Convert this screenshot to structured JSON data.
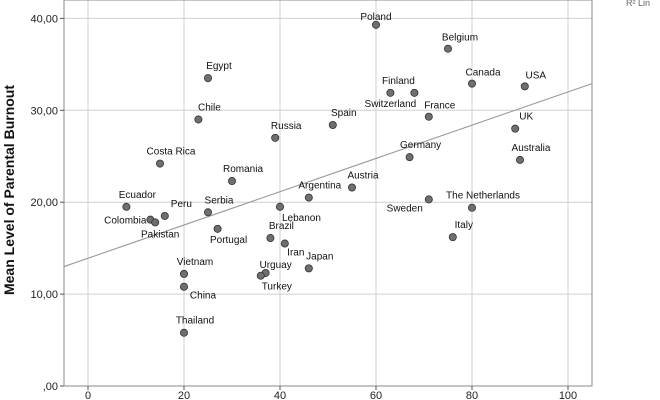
{
  "chart_data": {
    "type": "scatter",
    "xlim": [
      -5,
      105
    ],
    "ylim": [
      0,
      40
    ],
    "x_ticks": [
      0,
      20,
      40,
      60,
      80,
      100
    ],
    "x_tick_labels": [
      "0",
      "20",
      "40",
      "60",
      "80",
      "100"
    ],
    "y_ticks": [
      0,
      10,
      20,
      30,
      40
    ],
    "y_tick_labels": [
      ",00",
      "10,00",
      "20,00",
      "30,00",
      "40,00"
    ],
    "ylabel": "Mean Level of Parental Burnout",
    "xlabel": "",
    "grid": true,
    "corner_text": "R² Lin",
    "fit_line": {
      "intercept": 13.9,
      "slope": 0.181
    },
    "points": [
      {
        "label": "Poland",
        "x": 60,
        "y": 39.3
      },
      {
        "label": "Belgium",
        "x": 75,
        "y": 36.7
      },
      {
        "label": "Egypt",
        "x": 25,
        "y": 33.5
      },
      {
        "label": "USA",
        "x": 91,
        "y": 32.6
      },
      {
        "label": "Canada",
        "x": 80,
        "y": 32.9
      },
      {
        "label": "Finland",
        "x": 68,
        "y": 31.9
      },
      {
        "label": "Switzerland",
        "x": 63,
        "y": 31.9
      },
      {
        "label": "Chile",
        "x": 23,
        "y": 29.0
      },
      {
        "label": "France",
        "x": 71,
        "y": 29.3
      },
      {
        "label": "Spain",
        "x": 51,
        "y": 28.4
      },
      {
        "label": "UK",
        "x": 89,
        "y": 28.0
      },
      {
        "label": "Russia",
        "x": 39,
        "y": 27.0
      },
      {
        "label": "Germany",
        "x": 67,
        "y": 24.9
      },
      {
        "label": "Australia",
        "x": 90,
        "y": 24.6
      },
      {
        "label": "Costa Rica",
        "x": 15,
        "y": 24.2
      },
      {
        "label": "Romania",
        "x": 30,
        "y": 22.3
      },
      {
        "label": "Austria",
        "x": 55,
        "y": 21.6
      },
      {
        "label": "Argentina",
        "x": 46,
        "y": 20.5
      },
      {
        "label": "Sweden",
        "x": 71,
        "y": 20.3
      },
      {
        "label": "Ecuador",
        "x": 8,
        "y": 19.5
      },
      {
        "label": "The Netherlands",
        "x": 80,
        "y": 19.4
      },
      {
        "label": "Lebanon",
        "x": 40,
        "y": 19.5
      },
      {
        "label": "Serbia",
        "x": 25,
        "y": 18.9
      },
      {
        "label": "Peru",
        "x": 16,
        "y": 18.5
      },
      {
        "label": "Colombia",
        "x": 13,
        "y": 18.1
      },
      {
        "label": "Pakistan",
        "x": 14,
        "y": 17.8
      },
      {
        "label": "Portugal",
        "x": 27,
        "y": 17.1
      },
      {
        "label": "Italy",
        "x": 76,
        "y": 16.2
      },
      {
        "label": "Brazil",
        "x": 38,
        "y": 16.1
      },
      {
        "label": "Iran",
        "x": 41,
        "y": 15.5
      },
      {
        "label": "Japan",
        "x": 46,
        "y": 12.8
      },
      {
        "label": "Urguay",
        "x": 37,
        "y": 12.3
      },
      {
        "label": "Turkey",
        "x": 36,
        "y": 12.0
      },
      {
        "label": "Vietnam",
        "x": 20,
        "y": 12.2
      },
      {
        "label": "China",
        "x": 20,
        "y": 10.8
      },
      {
        "label": "Thailand",
        "x": 20,
        "y": 5.8
      }
    ]
  }
}
